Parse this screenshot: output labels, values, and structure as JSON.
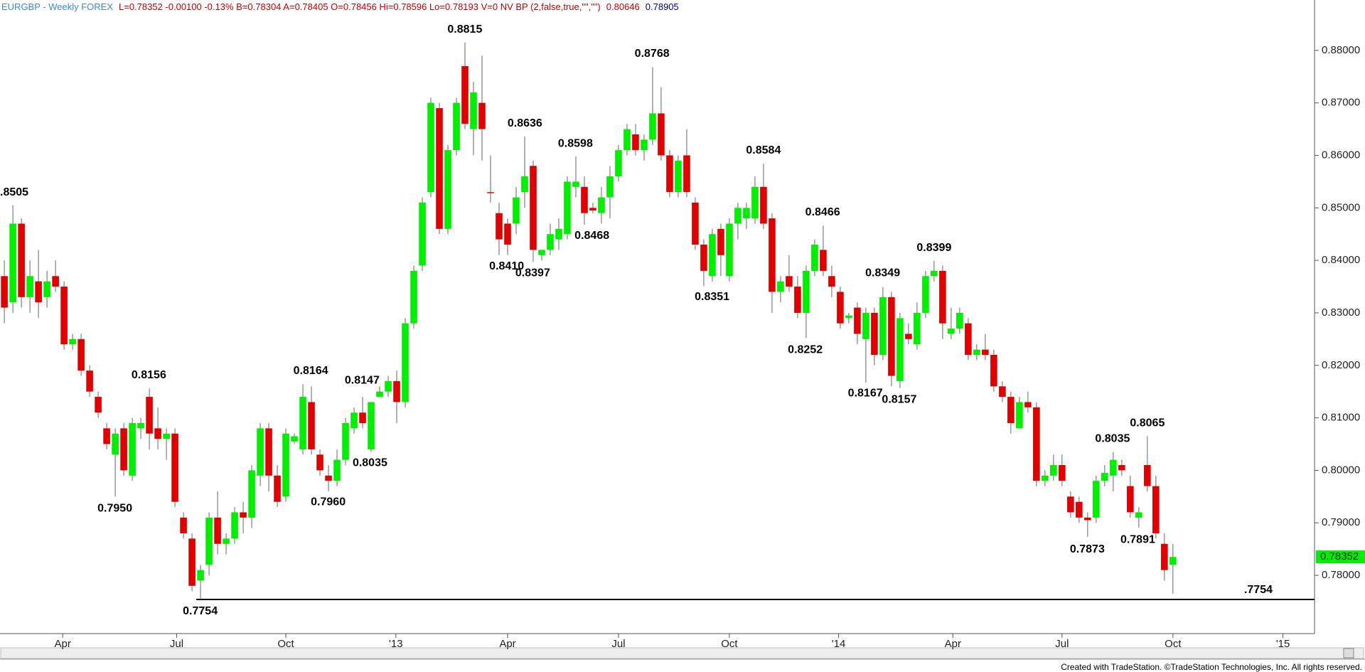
{
  "chart_data": {
    "type": "candlestick",
    "header": [
      {
        "text": "EURGBP - Weekly  FOREX",
        "color": "#3d86e0"
      },
      {
        "text": "L=0.78352  -0.00100  -0.13%  B=0.78304  A=0.78405  O=0.78456  Hi=0.78596  Lo=0.78193  V=0  NV BP (2,false,true,\"\",\"\")",
        "color": "#c00000"
      },
      {
        "text": "0.80646",
        "color": "#c00000"
      },
      {
        "text": "0.78905",
        "color": "#000080"
      }
    ],
    "up_color": "#00ee00",
    "down_color": "#e00000",
    "open": [
      0.837,
      0.832,
      0.847,
      0.833,
      0.836,
      0.833,
      0.837,
      0.835,
      0.824,
      0.825,
      0.819,
      0.814,
      0.808,
      0.803,
      0.808,
      0.799,
      0.808,
      0.814,
      0.808,
      0.806,
      0.807,
      0.791,
      0.787,
      0.779,
      0.782,
      0.791,
      0.786,
      0.787,
      0.792,
      0.791,
      0.799,
      0.808,
      0.799,
      0.795,
      0.8055,
      0.804,
      0.813,
      0.803,
      0.799,
      0.798,
      0.802,
      0.808,
      0.811,
      0.804,
      0.814,
      0.815,
      0.817,
      0.813,
      0.828,
      0.839,
      0.853,
      0.869,
      0.846,
      0.861,
      0.877,
      0.865,
      0.87,
      0.853,
      0.849,
      0.847,
      0.847,
      0.853,
      0.858,
      0.841,
      0.842,
      0.844,
      0.845,
      0.854,
      0.854,
      0.85,
      0.849,
      0.852,
      0.856,
      0.861,
      0.864,
      0.861,
      0.863,
      0.868,
      0.86,
      0.853,
      0.86,
      0.851,
      0.843,
      0.837,
      0.846,
      0.837,
      0.847,
      0.848,
      0.848,
      0.854,
      0.848,
      0.834,
      0.837,
      0.835,
      0.83,
      0.838,
      0.842,
      0.837,
      0.834,
      0.829,
      0.831,
      0.825,
      0.83,
      0.822,
      0.833,
      0.817,
      0.826,
      0.824,
      0.83,
      0.837,
      0.838,
      0.826,
      0.827,
      0.828,
      0.822,
      0.823,
      0.822,
      0.816,
      0.814,
      0.808,
      0.813,
      0.812,
      0.798,
      0.799,
      0.801,
      0.795,
      0.794,
      0.791,
      0.791,
      0.798,
      0.799,
      0.801,
      0.797,
      0.791,
      0.801,
      0.797,
      0.786,
      0.782
    ],
    "high": [
      0.84,
      0.8505,
      0.848,
      0.84,
      0.842,
      0.838,
      0.84,
      0.836,
      0.826,
      0.826,
      0.82,
      0.815,
      0.809,
      0.808,
      0.809,
      0.81,
      0.81,
      0.8156,
      0.812,
      0.808,
      0.808,
      0.792,
      0.788,
      0.782,
      0.792,
      0.796,
      0.788,
      0.793,
      0.794,
      0.801,
      0.809,
      0.809,
      0.801,
      0.808,
      0.807,
      0.8164,
      0.816,
      0.804,
      0.801,
      0.804,
      0.81,
      0.812,
      0.814,
      0.813,
      0.816,
      0.818,
      0.819,
      0.829,
      0.839,
      0.852,
      0.871,
      0.87,
      0.862,
      0.871,
      0.8815,
      0.874,
      0.879,
      0.86,
      0.851,
      0.848,
      0.854,
      0.8636,
      0.859,
      0.842,
      0.847,
      0.848,
      0.856,
      0.8598,
      0.856,
      0.851,
      0.854,
      0.858,
      0.862,
      0.866,
      0.866,
      0.864,
      0.8768,
      0.873,
      0.861,
      0.86,
      0.865,
      0.852,
      0.844,
      0.846,
      0.847,
      0.848,
      0.851,
      0.851,
      0.856,
      0.8584,
      0.849,
      0.837,
      0.841,
      0.837,
      0.839,
      0.844,
      0.8466,
      0.839,
      0.835,
      0.83,
      0.832,
      0.831,
      0.831,
      0.8349,
      0.834,
      0.83,
      0.828,
      0.832,
      0.838,
      0.8399,
      0.839,
      0.831,
      0.831,
      0.829,
      0.824,
      0.826,
      0.823,
      0.817,
      0.815,
      0.814,
      0.815,
      0.813,
      0.8,
      0.803,
      0.803,
      0.796,
      0.795,
      0.792,
      0.799,
      0.801,
      0.8035,
      0.802,
      0.799,
      0.793,
      0.8065,
      0.799,
      0.788,
      0.786
    ],
    "low": [
      0.828,
      0.83,
      0.831,
      0.83,
      0.829,
      0.831,
      0.834,
      0.823,
      0.823,
      0.818,
      0.814,
      0.81,
      0.804,
      0.795,
      0.799,
      0.798,
      0.806,
      0.804,
      0.804,
      0.802,
      0.793,
      0.787,
      0.777,
      0.7754,
      0.78,
      0.784,
      0.784,
      0.786,
      0.788,
      0.789,
      0.797,
      0.796,
      0.793,
      0.794,
      0.805,
      0.803,
      0.803,
      0.799,
      0.796,
      0.797,
      0.801,
      0.807,
      0.808,
      0.8035,
      0.814,
      0.814,
      0.809,
      0.812,
      0.827,
      0.838,
      0.852,
      0.845,
      0.845,
      0.86,
      0.865,
      0.86,
      0.859,
      0.851,
      0.841,
      0.841,
      0.845,
      0.85,
      0.8397,
      0.84,
      0.841,
      0.842,
      0.844,
      0.852,
      0.8468,
      0.849,
      0.847,
      0.848,
      0.855,
      0.86,
      0.86,
      0.859,
      0.862,
      0.859,
      0.852,
      0.852,
      0.852,
      0.842,
      0.8351,
      0.836,
      0.837,
      0.836,
      0.844,
      0.846,
      0.847,
      0.846,
      0.83,
      0.832,
      0.834,
      0.829,
      0.8252,
      0.837,
      0.837,
      0.833,
      0.827,
      0.828,
      0.824,
      0.8167,
      0.82,
      0.821,
      0.816,
      0.8157,
      0.824,
      0.823,
      0.829,
      0.836,
      0.825,
      0.825,
      0.826,
      0.821,
      0.821,
      0.821,
      0.815,
      0.813,
      0.807,
      0.808,
      0.811,
      0.797,
      0.797,
      0.798,
      0.797,
      0.791,
      0.79,
      0.7873,
      0.79,
      0.797,
      0.796,
      0.799,
      0.791,
      0.7891,
      0.796,
      0.787,
      0.779,
      0.7765
    ],
    "close": [
      0.831,
      0.847,
      0.833,
      0.837,
      0.832,
      0.836,
      0.835,
      0.824,
      0.825,
      0.819,
      0.815,
      0.811,
      0.805,
      0.807,
      0.8,
      0.809,
      0.809,
      0.807,
      0.806,
      0.807,
      0.794,
      0.788,
      0.778,
      0.781,
      0.791,
      0.786,
      0.787,
      0.792,
      0.791,
      0.8,
      0.808,
      0.799,
      0.794,
      0.807,
      0.8065,
      0.814,
      0.804,
      0.8,
      0.798,
      0.802,
      0.809,
      0.811,
      0.809,
      0.813,
      0.815,
      0.817,
      0.813,
      0.828,
      0.838,
      0.851,
      0.87,
      0.846,
      0.861,
      0.87,
      0.866,
      0.872,
      0.865,
      0.8528,
      0.844,
      0.843,
      0.852,
      0.856,
      0.842,
      0.842,
      0.845,
      0.846,
      0.855,
      0.855,
      0.849,
      0.8495,
      0.852,
      0.856,
      0.861,
      0.865,
      0.861,
      0.863,
      0.868,
      0.86,
      0.853,
      0.859,
      0.853,
      0.843,
      0.838,
      0.845,
      0.841,
      0.847,
      0.85,
      0.85,
      0.854,
      0.847,
      0.834,
      0.836,
      0.835,
      0.83,
      0.838,
      0.843,
      0.838,
      0.835,
      0.828,
      0.8295,
      0.826,
      0.83,
      0.822,
      0.833,
      0.818,
      0.829,
      0.825,
      0.83,
      0.837,
      0.838,
      0.828,
      0.827,
      0.83,
      0.822,
      0.823,
      0.822,
      0.816,
      0.814,
      0.809,
      0.813,
      0.812,
      0.798,
      0.799,
      0.801,
      0.798,
      0.792,
      0.791,
      0.7905,
      0.798,
      0.7995,
      0.802,
      0.8,
      0.792,
      0.792,
      0.797,
      0.788,
      0.781,
      0.7835
    ],
    "xlim": [
      -0.51,
      153.6
    ],
    "xticks": [
      {
        "value": 6.84,
        "label": "Apr"
      },
      {
        "value": 20.2,
        "label": "Jul"
      },
      {
        "value": 33.0,
        "label": "Oct"
      },
      {
        "value": 45.9,
        "label": "'13"
      },
      {
        "value": 59.0,
        "label": "Apr"
      },
      {
        "value": 72.0,
        "label": "Jul"
      },
      {
        "value": 85.0,
        "label": "Oct"
      },
      {
        "value": 97.8,
        "label": "'14"
      },
      {
        "value": 111.2,
        "label": "Apr"
      },
      {
        "value": 124.0,
        "label": "Jul"
      },
      {
        "value": 137.0,
        "label": "Oct"
      },
      {
        "value": 149.9,
        "label": "'15"
      }
    ],
    "ylim": [
      0.7689,
      0.8896
    ],
    "yticks": [
      {
        "value": 0.78,
        "label": "0.78000"
      },
      {
        "value": 0.79,
        "label": "0.79000"
      },
      {
        "value": 0.8,
        "label": "0.80000"
      },
      {
        "value": 0.81,
        "label": "0.81000"
      },
      {
        "value": 0.82,
        "label": "0.82000"
      },
      {
        "value": 0.83,
        "label": "0.83000"
      },
      {
        "value": 0.84,
        "label": "0.84000"
      },
      {
        "value": 0.85,
        "label": "0.85000"
      },
      {
        "value": 0.86,
        "label": "0.86000"
      },
      {
        "value": 0.87,
        "label": "0.87000"
      },
      {
        "value": 0.88,
        "label": "0.88000"
      }
    ],
    "last": {
      "value": 0.78352,
      "label": "0.78352"
    },
    "support": {
      "value": 0.7754,
      "label": ".7754"
    },
    "annotations": [
      ".8505",
      "0.8815",
      "0.8636",
      "0.8598",
      "0.8768",
      "0.8584",
      "0.8466",
      "0.8399",
      "0.8349",
      "0.8156",
      "0.8164",
      "0.8147",
      "0.8035",
      "0.8065",
      "0.7950",
      "0.7754",
      "0.7960",
      "0.8035",
      "0.8410",
      "0.8397",
      "0.8468",
      "0.8351",
      "0.8252",
      "0.8167",
      "0.8157",
      "0.7873",
      "0.7891"
    ],
    "footer": "Created with TradeStation. ©TradeStation Technologies, Inc. All rights reserved."
  }
}
